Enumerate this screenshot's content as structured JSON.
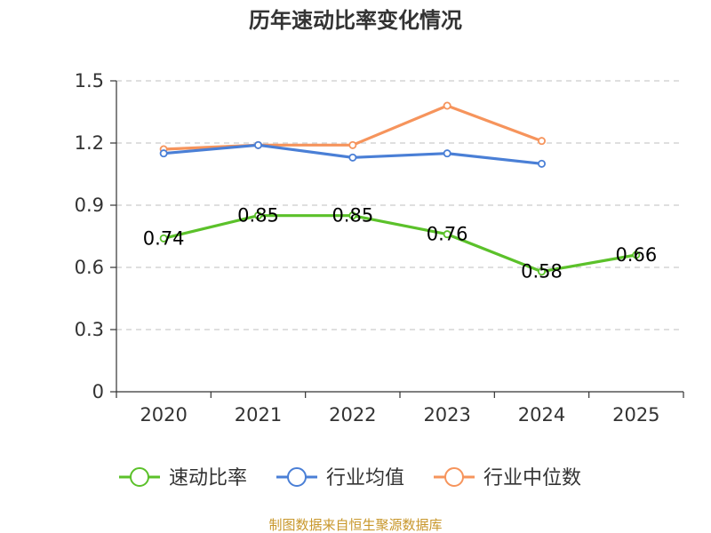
{
  "chart_data": {
    "type": "line",
    "title": "历年速动比率变化情况",
    "categories": [
      "2020",
      "2021",
      "2022",
      "2023",
      "2024",
      "2025"
    ],
    "ylim": [
      0,
      1.5
    ],
    "yticks": [
      "0",
      "0.3",
      "0.6",
      "0.9",
      "1.2",
      "1.5"
    ],
    "grid": true,
    "legend_position": "bottom",
    "series": [
      {
        "name": "速动比率",
        "color": "#5bc12a",
        "values": [
          0.74,
          0.85,
          0.85,
          0.76,
          0.58,
          0.66
        ],
        "labels": [
          "0.74",
          "0.85",
          "0.85",
          "0.76",
          "0.58",
          "0.66"
        ]
      },
      {
        "name": "行业均值",
        "color": "#4a7fd6",
        "values": [
          1.15,
          1.19,
          1.13,
          1.15,
          1.1,
          null
        ]
      },
      {
        "name": "行业中位数",
        "color": "#f6945c",
        "values": [
          1.17,
          1.19,
          1.19,
          1.38,
          1.21,
          null
        ]
      }
    ],
    "source": "制图数据来自恒生聚源数据库"
  }
}
